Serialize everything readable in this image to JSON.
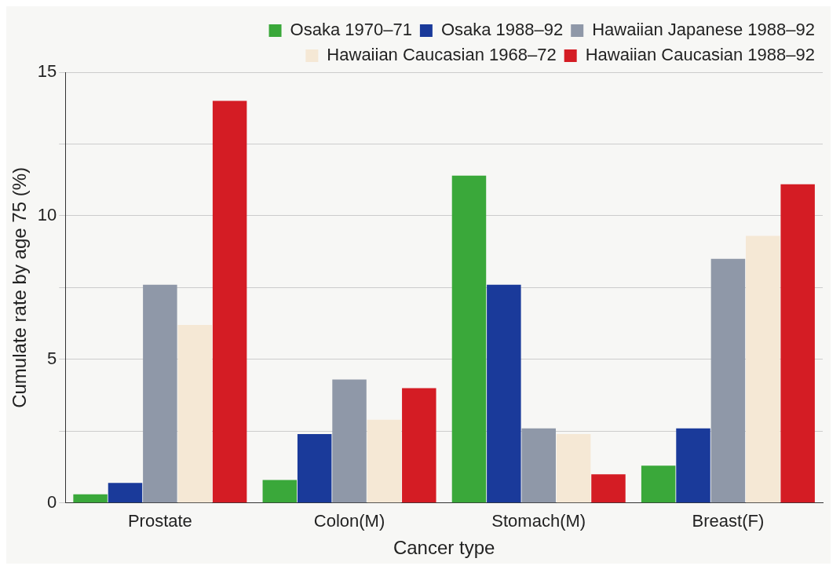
{
  "chart_data": {
    "type": "bar",
    "xlabel": "Cancer type",
    "ylabel": "Cumulate rate by age 75 (%)",
    "categories": [
      "Prostate",
      "Colon(M)",
      "Stomach(M)",
      "Breast(F)"
    ],
    "series": [
      {
        "name": "Osaka 1970–71",
        "color": "#3aa83a",
        "values": [
          0.3,
          0.8,
          11.4,
          1.3
        ]
      },
      {
        "name": "Osaka 1988–92",
        "color": "#1a3a9a",
        "values": [
          0.7,
          2.4,
          7.6,
          2.6
        ]
      },
      {
        "name": "Hawaiian Japanese 1988–92",
        "color": "#8f98a8",
        "values": [
          7.6,
          4.3,
          2.6,
          8.5
        ]
      },
      {
        "name": "Hawaiian Caucasian 1968–72",
        "color": "#f5e8d5",
        "values": [
          6.2,
          2.9,
          2.4,
          9.3
        ]
      },
      {
        "name": "Hawaiian Caucasian 1988–92",
        "color": "#d41c24",
        "values": [
          14.0,
          4.0,
          1.0,
          11.1
        ]
      }
    ],
    "ylim": [
      0,
      15
    ],
    "yticks": [
      0,
      {
        "value": 2.5,
        "label": null
      },
      5,
      {
        "value": 7.5,
        "label": null
      },
      10,
      {
        "value": 12.5,
        "label": null
      },
      15
    ],
    "grid": "y",
    "legend": "top right"
  }
}
